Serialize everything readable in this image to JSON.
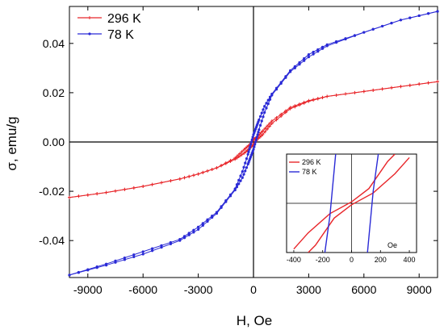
{
  "chart_data": [
    {
      "type": "line",
      "xlabel": "H, Oe",
      "ylabel": "σ, emu/g",
      "xlim": [
        -10000,
        10000
      ],
      "ylim": [
        -0.055,
        0.055
      ],
      "x_ticks": [
        -9000,
        -6000,
        -3000,
        0,
        3000,
        6000,
        9000
      ],
      "y_ticks": [
        -0.04,
        -0.02,
        0.0,
        0.02,
        0.04
      ],
      "x_tick_labels": [
        "-9000",
        "-6000",
        "-3000",
        "0",
        "3000",
        "6000",
        "9000"
      ],
      "y_tick_labels": [
        "-0.04",
        "-0.02",
        "0.00",
        "0.02",
        "0.04"
      ],
      "zero_lines": true,
      "legend_position": "top-left",
      "series": [
        {
          "name": "296 K",
          "color": "#e8262a",
          "marker": "cross",
          "ascending": [
            [
              -10000,
              -0.0225
            ],
            [
              -8000,
              -0.0205
            ],
            [
              -6000,
              -0.018
            ],
            [
              -4000,
              -0.015
            ],
            [
              -3000,
              -0.013
            ],
            [
              -2000,
              -0.0105
            ],
            [
              -1000,
              -0.007
            ],
            [
              -500,
              -0.0045
            ],
            [
              -200,
              -0.0025
            ],
            [
              0,
              -0.001
            ],
            [
              200,
              0.001
            ],
            [
              500,
              0.003
            ],
            [
              1000,
              0.0075
            ],
            [
              2000,
              0.0135
            ],
            [
              3000,
              0.0165
            ],
            [
              4000,
              0.0185
            ],
            [
              6000,
              0.0205
            ],
            [
              8000,
              0.0225
            ],
            [
              10000,
              0.0245
            ]
          ],
          "descending": [
            [
              10000,
              0.0245
            ],
            [
              8000,
              0.0225
            ],
            [
              6000,
              0.0205
            ],
            [
              4000,
              0.0185
            ],
            [
              3000,
              0.0168
            ],
            [
              2000,
              0.014
            ],
            [
              1000,
              0.0085
            ],
            [
              500,
              0.0045
            ],
            [
              200,
              0.002
            ],
            [
              0,
              0.001
            ],
            [
              -200,
              -0.001
            ],
            [
              -500,
              -0.003
            ],
            [
              -1000,
              -0.0065
            ],
            [
              -2000,
              -0.0105
            ],
            [
              -3000,
              -0.013
            ],
            [
              -4000,
              -0.015
            ],
            [
              -6000,
              -0.018
            ],
            [
              -8000,
              -0.0205
            ],
            [
              -10000,
              -0.0225
            ]
          ]
        },
        {
          "name": "78 K",
          "color": "#2a2ad6",
          "marker": "star",
          "ascending": [
            [
              -10000,
              -0.054
            ],
            [
              -8000,
              -0.05
            ],
            [
              -6000,
              -0.0455
            ],
            [
              -4000,
              -0.04
            ],
            [
              -3000,
              -0.0355
            ],
            [
              -2000,
              -0.029
            ],
            [
              -1000,
              -0.0195
            ],
            [
              -600,
              -0.0145
            ],
            [
              -300,
              -0.009
            ],
            [
              -150,
              -0.006
            ],
            [
              0,
              -0.003
            ],
            [
              150,
              0.001
            ],
            [
              300,
              0.005
            ],
            [
              600,
              0.012
            ],
            [
              1000,
              0.019
            ],
            [
              2000,
              0.0285
            ],
            [
              3000,
              0.0345
            ],
            [
              4000,
              0.039
            ],
            [
              6000,
              0.0445
            ],
            [
              8000,
              0.0495
            ],
            [
              10000,
              0.053
            ]
          ],
          "descending": [
            [
              10000,
              0.053
            ],
            [
              8000,
              0.0495
            ],
            [
              6000,
              0.0445
            ],
            [
              4000,
              0.0395
            ],
            [
              3000,
              0.0355
            ],
            [
              2000,
              0.029
            ],
            [
              1000,
              0.0195
            ],
            [
              600,
              0.0145
            ],
            [
              300,
              0.009
            ],
            [
              150,
              0.006
            ],
            [
              0,
              0.003
            ],
            [
              -150,
              -0.001
            ],
            [
              -300,
              -0.005
            ],
            [
              -600,
              -0.012
            ],
            [
              -1000,
              -0.019
            ],
            [
              -2000,
              -0.0285
            ],
            [
              -3000,
              -0.0345
            ],
            [
              -4000,
              -0.0395
            ],
            [
              -6000,
              -0.0445
            ],
            [
              -8000,
              -0.0495
            ],
            [
              -10000,
              -0.054
            ]
          ]
        }
      ]
    },
    {
      "type": "line",
      "role": "inset",
      "xlabel": "Oe",
      "xlim": [
        -450,
        450
      ],
      "ylim": [
        -1,
        1
      ],
      "x_ticks": [
        -400,
        -200,
        0,
        200,
        400
      ],
      "x_tick_labels": [
        "-400",
        "-200",
        "0",
        "200",
        "400"
      ],
      "zero_lines": true,
      "legend_position": "top-left",
      "series": [
        {
          "name": "296 K",
          "color": "#e8262a",
          "ascending": [
            [
              -400,
              -0.93
            ],
            [
              -300,
              -0.6
            ],
            [
              -150,
              -0.21
            ],
            [
              0,
              0.03
            ],
            [
              120,
              0.3
            ],
            [
              250,
              0.85
            ],
            [
              300,
              1.0
            ]
          ],
          "descending": [
            [
              400,
              0.93
            ],
            [
              300,
              0.6
            ],
            [
              150,
              0.21
            ],
            [
              0,
              -0.03
            ],
            [
              -120,
              -0.3
            ],
            [
              -250,
              -0.85
            ],
            [
              -300,
              -1.0
            ]
          ]
        },
        {
          "name": "78 K",
          "color": "#2a2ad6",
          "ascending": [
            [
              -185,
              -1.0
            ],
            [
              -150,
              -0.25
            ],
            [
              -110,
              1.0
            ]
          ],
          "descending": [
            [
              185,
              1.0
            ],
            [
              150,
              0.25
            ],
            [
              110,
              -1.0
            ]
          ]
        }
      ]
    }
  ]
}
